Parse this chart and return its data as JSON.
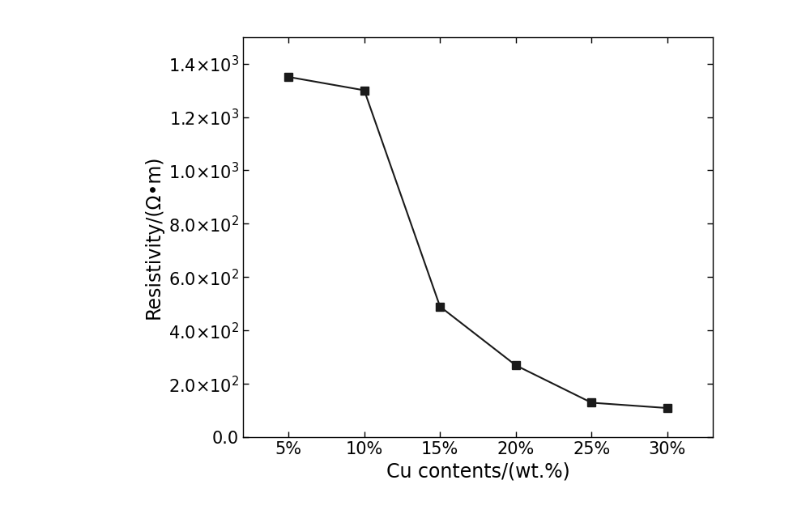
{
  "x_labels": [
    "5%",
    "10%",
    "15%",
    "20%",
    "25%",
    "30%"
  ],
  "x_values": [
    5,
    10,
    15,
    20,
    25,
    30
  ],
  "y_values": [
    1350,
    1300,
    490,
    270,
    130,
    110
  ],
  "xlabel": "Cu contents/(wt.%)",
  "ylabel": "Resistivity/(Ω•m)",
  "ylim": [
    0,
    1500
  ],
  "yticks": [
    0,
    200,
    400,
    600,
    800,
    1000,
    1200,
    1400
  ],
  "line_color": "#1a1a1a",
  "marker": "s",
  "marker_size": 7,
  "marker_color": "#1a1a1a",
  "line_width": 1.5,
  "background_color": "#ffffff",
  "label_fontsize": 17,
  "tick_fontsize": 15
}
